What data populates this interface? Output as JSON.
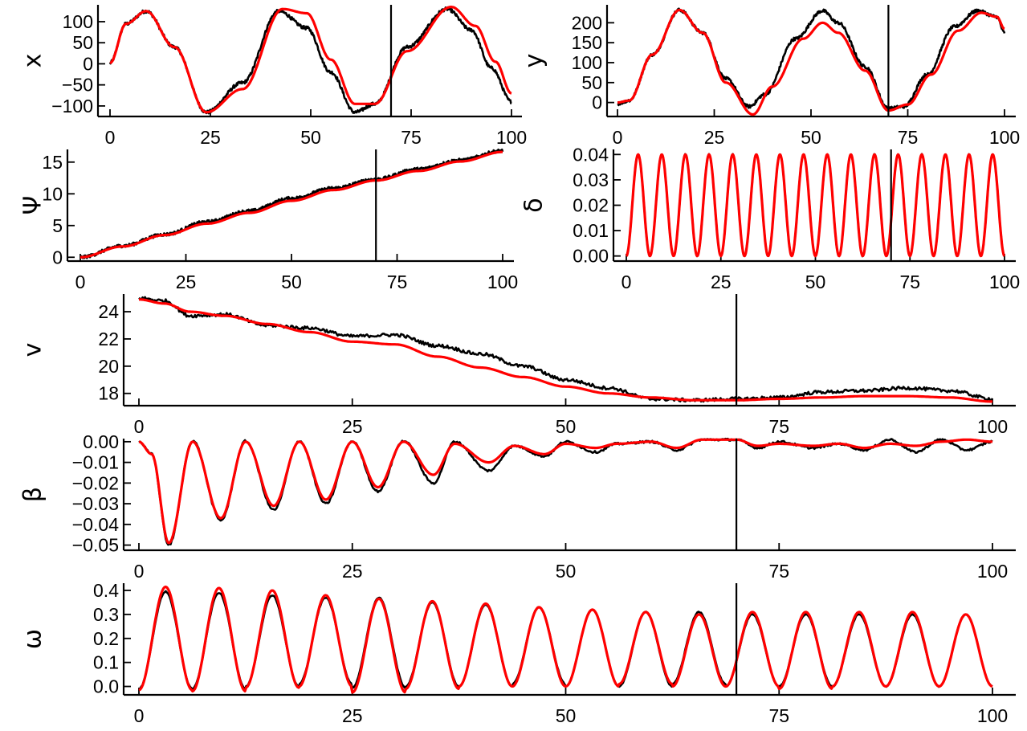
{
  "chart_data": [
    {
      "id": "x",
      "type": "line",
      "ylabel": "x",
      "xlim": [
        0,
        100
      ],
      "ylim": [
        -125,
        140
      ],
      "xticks": [
        0,
        25,
        50,
        75,
        100
      ],
      "yticks": [
        -100,
        -50,
        0,
        50,
        100
      ],
      "vline_x": 70,
      "series": [
        {
          "color": "#000000",
          "noise": 4,
          "x": [
            0,
            4,
            9,
            16,
            24,
            33,
            42,
            49,
            55,
            61,
            66,
            74,
            84,
            90,
            95,
            100
          ],
          "y": [
            2,
            95,
            125,
            40,
            -115,
            -45,
            125,
            85,
            -20,
            -115,
            -95,
            40,
            130,
            80,
            -10,
            -90
          ]
        },
        {
          "color": "#ff0000",
          "noise": 0,
          "x": [
            0,
            4,
            9,
            16,
            24,
            33,
            43,
            49,
            55,
            61,
            66,
            74,
            85,
            91,
            96,
            100
          ],
          "y": [
            2,
            95,
            125,
            40,
            -115,
            -60,
            130,
            120,
            10,
            -95,
            -95,
            30,
            135,
            90,
            5,
            -70
          ]
        }
      ]
    },
    {
      "id": "y",
      "type": "line",
      "ylabel": "y",
      "xlim": [
        0,
        100
      ],
      "ylim": [
        -35,
        245
      ],
      "xticks": [
        0,
        25,
        50,
        75,
        100
      ],
      "yticks": [
        0,
        50,
        100,
        150,
        200
      ],
      "vline_x": 70,
      "series": [
        {
          "color": "#000000",
          "noise": 4,
          "x": [
            0,
            3,
            9,
            16,
            22,
            28,
            34,
            38,
            46,
            53,
            57,
            64,
            70,
            74,
            80,
            87,
            93,
            98,
            100
          ],
          "y": [
            -3,
            5,
            120,
            232,
            175,
            60,
            -10,
            20,
            160,
            230,
            200,
            90,
            -15,
            -10,
            70,
            190,
            230,
            215,
            175
          ]
        },
        {
          "color": "#ff0000",
          "noise": 0,
          "x": [
            0,
            3,
            9,
            16,
            22,
            28,
            35,
            40,
            48,
            53,
            57,
            64,
            70,
            75,
            81,
            88,
            94,
            98,
            100
          ],
          "y": [
            0,
            5,
            120,
            232,
            175,
            50,
            -30,
            40,
            160,
            200,
            175,
            80,
            -20,
            -5,
            70,
            180,
            225,
            215,
            185
          ]
        }
      ]
    },
    {
      "id": "psi",
      "type": "line",
      "ylabel": "Ψ",
      "xlim": [
        0,
        100
      ],
      "ylim": [
        -0.6,
        17
      ],
      "xticks": [
        0,
        25,
        50,
        75,
        100
      ],
      "yticks": [
        0,
        5,
        10,
        15
      ],
      "vline_x": 70,
      "series": [
        {
          "color": "#000000",
          "noise": 0.25,
          "x": [
            0,
            10,
            20,
            30,
            40,
            50,
            60,
            70,
            80,
            90,
            100
          ],
          "y": [
            0,
            1.8,
            3.6,
            5.6,
            7.3,
            9.3,
            10.9,
            12.3,
            13.9,
            15.3,
            16.8
          ]
        },
        {
          "color": "#ff0000",
          "noise": 0,
          "x": [
            0,
            10,
            20,
            30,
            40,
            50,
            60,
            70,
            80,
            90,
            100
          ],
          "y": [
            0,
            1.7,
            3.5,
            5.3,
            7.0,
            8.9,
            10.6,
            12.1,
            13.6,
            15.1,
            16.6
          ]
        }
      ]
    },
    {
      "id": "delta",
      "type": "line",
      "ylabel": "δ",
      "xlim": [
        0,
        100
      ],
      "ylim": [
        -0.002,
        0.042
      ],
      "xticks": [
        0,
        25,
        50,
        75,
        100
      ],
      "yticks": [
        0.0,
        0.01,
        0.02,
        0.03,
        0.04
      ],
      "ytick_labels": [
        "0.00",
        "0.01",
        "0.02",
        "0.03",
        "0.04"
      ],
      "vline_x": 70,
      "wave": {
        "amplitude": 0.02,
        "offset": 0.02,
        "period": 6.25,
        "phase_x": 1.5625,
        "x_end": 100
      },
      "series": [
        {
          "color": "#000000",
          "from_wave": true
        },
        {
          "color": "#ff0000",
          "from_wave": true
        }
      ]
    },
    {
      "id": "v",
      "type": "line",
      "ylabel": "v",
      "xlim": [
        0,
        100
      ],
      "ylim": [
        17.1,
        25.3
      ],
      "xticks": [
        0,
        25,
        50,
        75,
        100
      ],
      "yticks": [
        18,
        20,
        22,
        24
      ],
      "vline_x": 70,
      "series": [
        {
          "color": "#000000",
          "noise": 0.12,
          "x": [
            0,
            3,
            6,
            10,
            15,
            20,
            25,
            30,
            35,
            40,
            45,
            50,
            55,
            60,
            65,
            70,
            75,
            80,
            85,
            90,
            95,
            100
          ],
          "y": [
            25.0,
            24.8,
            23.7,
            23.8,
            23.0,
            22.8,
            22.2,
            22.3,
            21.5,
            20.9,
            20.0,
            19.0,
            18.4,
            17.6,
            17.5,
            17.6,
            17.7,
            18.1,
            18.2,
            18.4,
            18.2,
            17.6
          ]
        },
        {
          "color": "#ff0000",
          "noise": 0,
          "x": [
            0,
            3,
            6,
            10,
            15,
            20,
            25,
            30,
            35,
            40,
            45,
            50,
            55,
            60,
            65,
            70,
            75,
            80,
            85,
            90,
            95,
            100
          ],
          "y": [
            24.9,
            24.6,
            24.0,
            23.7,
            23.1,
            22.5,
            21.8,
            21.6,
            20.7,
            19.9,
            19.2,
            18.5,
            18.0,
            17.7,
            17.5,
            17.5,
            17.6,
            17.7,
            17.8,
            17.8,
            17.7,
            17.4
          ]
        }
      ]
    },
    {
      "id": "beta",
      "type": "line",
      "ylabel": "β",
      "xlim": [
        0,
        100
      ],
      "ylim": [
        -0.0525,
        0.0015
      ],
      "xticks": [
        0,
        25,
        50,
        75,
        100
      ],
      "yticks": [
        0.0,
        -0.01,
        -0.02,
        -0.03,
        -0.04,
        -0.05
      ],
      "ytick_labels": [
        "0.00",
        "−0.01",
        "−0.02",
        "−0.03",
        "−0.04",
        "−0.05"
      ],
      "vline_x": 70,
      "series": [
        {
          "color": "#000000",
          "noise": 0.0005,
          "x": [
            0,
            1.5,
            3.5,
            6.3,
            9.6,
            12.5,
            15.8,
            18.8,
            21.9,
            25,
            28,
            31,
            34.5,
            37,
            41,
            44,
            47.5,
            50,
            53.5,
            56,
            60,
            63,
            66,
            70,
            72.5,
            75,
            79,
            82,
            85,
            88,
            91,
            94,
            97,
            100
          ],
          "y": [
            0,
            -0.006,
            -0.05,
            0.0005,
            -0.038,
            0.0003,
            -0.033,
            0.0003,
            -0.03,
            0.0002,
            -0.024,
            0.0004,
            -0.02,
            0.0,
            -0.014,
            -0.002,
            -0.007,
            0.0,
            -0.005,
            -0.001,
            0.0,
            -0.004,
            0.001,
            0.001,
            -0.003,
            0.0,
            -0.003,
            -0.001,
            -0.004,
            0.001,
            -0.005,
            0.001,
            -0.004,
            0.0
          ]
        },
        {
          "color": "#ff0000",
          "noise": 0,
          "x": [
            0,
            1.5,
            3.5,
            6.3,
            9.6,
            12.5,
            15.8,
            18.8,
            21.9,
            25,
            28,
            31,
            34.5,
            37,
            41,
            44,
            47.5,
            50,
            53.5,
            56,
            60,
            63,
            66,
            70,
            72.5,
            75,
            79,
            82,
            85,
            88,
            91,
            94,
            97,
            100
          ],
          "y": [
            0,
            -0.006,
            -0.049,
            0.0,
            -0.037,
            0.0,
            -0.031,
            0.0,
            -0.028,
            0.0,
            -0.022,
            0.0,
            -0.016,
            -0.001,
            -0.01,
            -0.002,
            -0.006,
            -0.001,
            -0.003,
            -0.001,
            0.0,
            -0.003,
            0.001,
            0.001,
            -0.002,
            -0.001,
            -0.002,
            -0.001,
            -0.003,
            -0.001,
            -0.002,
            0.0,
            0.001,
            0.0
          ]
        }
      ]
    },
    {
      "id": "omega",
      "type": "line",
      "ylabel": "ω",
      "xlim": [
        0,
        100
      ],
      "ylim": [
        -0.035,
        0.43
      ],
      "xticks": [
        0,
        25,
        50,
        75,
        100
      ],
      "yticks": [
        0.0,
        0.1,
        0.2,
        0.3,
        0.4
      ],
      "ytick_labels": [
        "0.0",
        "0.1",
        "0.2",
        "0.3",
        "0.4"
      ],
      "vline_x": 70,
      "wave": {
        "period": 6.25,
        "offset": 0.0,
        "x_end": 100
      },
      "series": [
        {
          "color": "#000000",
          "from_wave": true,
          "peaks": [
            0.395,
            0.39,
            0.38,
            0.37,
            0.37,
            0.35,
            0.34,
            0.33,
            0.32,
            0.31,
            0.31,
            0.3,
            0.3,
            0.3,
            0.3,
            0.3
          ],
          "troughs": [
            -0.01,
            -0.01,
            0.0,
            0.01,
            -0.005,
            0.0,
            0.0,
            0.01,
            0.0,
            0.0,
            0.01,
            0.0,
            0.0,
            0.0,
            0.0,
            0.0
          ]
        },
        {
          "color": "#ff0000",
          "from_wave": true,
          "peaks": [
            0.415,
            0.41,
            0.4,
            0.38,
            0.365,
            0.355,
            0.345,
            0.33,
            0.32,
            0.31,
            0.3,
            0.31,
            0.31,
            0.31,
            0.31,
            0.3
          ],
          "troughs": [
            -0.015,
            -0.02,
            -0.005,
            0.0,
            -0.025,
            -0.01,
            0.0,
            0.0,
            0.0,
            0.01,
            0.0,
            0.0,
            -0.01,
            0.0,
            0.0,
            0.0
          ]
        }
      ]
    }
  ]
}
